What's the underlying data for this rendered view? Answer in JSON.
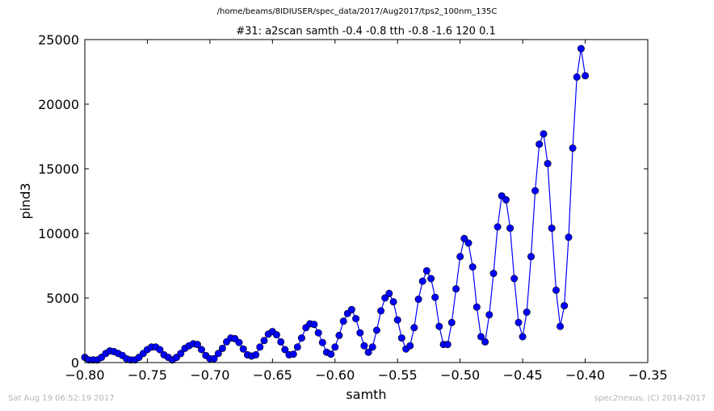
{
  "header": {
    "file_path": "/home/beams/8IDIUSER/spec_data/2017/Aug2017/tps2_100nm_135C"
  },
  "footer": {
    "timestamp": "Sat Aug 19 06:52:19 2017",
    "credit": "spec2nexus, (C) 2014-2017"
  },
  "chart_data": {
    "type": "line",
    "title": "#31: a2scan  samth -0.4 -0.8  tth -0.8 -1.6  120 0.1",
    "xlabel": "samth",
    "ylabel": "pind3",
    "xlim": [
      -0.8,
      -0.35
    ],
    "ylim": [
      0,
      25000
    ],
    "xticks": [
      -0.8,
      -0.75,
      -0.7,
      -0.65,
      -0.6,
      -0.55,
      -0.5,
      -0.45,
      -0.4,
      -0.35
    ],
    "xtick_labels": [
      "−0.80",
      "−0.75",
      "−0.70",
      "−0.65",
      "−0.60",
      "−0.55",
      "−0.50",
      "−0.45",
      "−0.40",
      "−0.35"
    ],
    "yticks": [
      0,
      5000,
      10000,
      15000,
      20000,
      25000
    ],
    "ytick_labels": [
      "0",
      "5000",
      "10000",
      "15000",
      "20000",
      "25000"
    ],
    "grid": false,
    "series": [
      {
        "color": "#0000ff",
        "marker": "circle",
        "x": [
          -0.8,
          -0.7967,
          -0.7933,
          -0.79,
          -0.7867,
          -0.7833,
          -0.78,
          -0.7767,
          -0.7733,
          -0.77,
          -0.7667,
          -0.7633,
          -0.76,
          -0.7567,
          -0.7533,
          -0.75,
          -0.7467,
          -0.7433,
          -0.74,
          -0.7367,
          -0.7333,
          -0.73,
          -0.7267,
          -0.7233,
          -0.72,
          -0.7167,
          -0.7133,
          -0.71,
          -0.7067,
          -0.7033,
          -0.7,
          -0.6967,
          -0.6933,
          -0.69,
          -0.6867,
          -0.6833,
          -0.68,
          -0.6767,
          -0.6733,
          -0.67,
          -0.6667,
          -0.6633,
          -0.66,
          -0.6567,
          -0.6533,
          -0.65,
          -0.6467,
          -0.6433,
          -0.64,
          -0.6367,
          -0.6333,
          -0.63,
          -0.6267,
          -0.6233,
          -0.62,
          -0.6167,
          -0.6133,
          -0.61,
          -0.6067,
          -0.6033,
          -0.6,
          -0.5967,
          -0.5933,
          -0.59,
          -0.5867,
          -0.5833,
          -0.58,
          -0.5767,
          -0.5733,
          -0.57,
          -0.5667,
          -0.5633,
          -0.56,
          -0.5567,
          -0.5533,
          -0.55,
          -0.5467,
          -0.5433,
          -0.54,
          -0.5367,
          -0.5333,
          -0.53,
          -0.5267,
          -0.5233,
          -0.52,
          -0.5167,
          -0.5133,
          -0.51,
          -0.5067,
          -0.5033,
          -0.5,
          -0.4967,
          -0.4933,
          -0.49,
          -0.4867,
          -0.4833,
          -0.48,
          -0.4767,
          -0.4733,
          -0.47,
          -0.4667,
          -0.4633,
          -0.46,
          -0.4567,
          -0.4533,
          -0.45,
          -0.4467,
          -0.4433,
          -0.44,
          -0.4367,
          -0.4333,
          -0.43,
          -0.4267,
          -0.4233,
          -0.42,
          -0.4167,
          -0.4133,
          -0.41,
          -0.4067,
          -0.4033,
          -0.4
        ],
        "y": [
          400,
          200,
          200,
          200,
          400,
          700,
          900,
          850,
          700,
          550,
          300,
          200,
          200,
          400,
          700,
          1000,
          1200,
          1200,
          1000,
          600,
          400,
          200,
          400,
          700,
          1100,
          1300,
          1450,
          1400,
          1000,
          550,
          300,
          300,
          700,
          1100,
          1600,
          1900,
          1850,
          1550,
          1050,
          600,
          500,
          600,
          1200,
          1700,
          2200,
          2400,
          2150,
          1600,
          1000,
          600,
          650,
          1200,
          1900,
          2700,
          3000,
          2950,
          2300,
          1550,
          800,
          650,
          1200,
          2100,
          3200,
          3800,
          4100,
          3400,
          2300,
          1300,
          800,
          1200,
          2500,
          4000,
          5000,
          5350,
          4700,
          3300,
          1900,
          1050,
          1300,
          2700,
          4900,
          6300,
          7100,
          6500,
          5050,
          2800,
          1400,
          1400,
          3100,
          5700,
          8200,
          9600,
          9250,
          7400,
          4300,
          2000,
          1600,
          3700,
          6900,
          10500,
          12900,
          12600,
          10400,
          6500,
          3100,
          2000,
          3900,
          8200,
          13300,
          16900,
          17700,
          15400,
          10400,
          5600,
          2800,
          4400,
          9700,
          16600,
          22100,
          24300,
          22200
        ]
      }
    ]
  }
}
